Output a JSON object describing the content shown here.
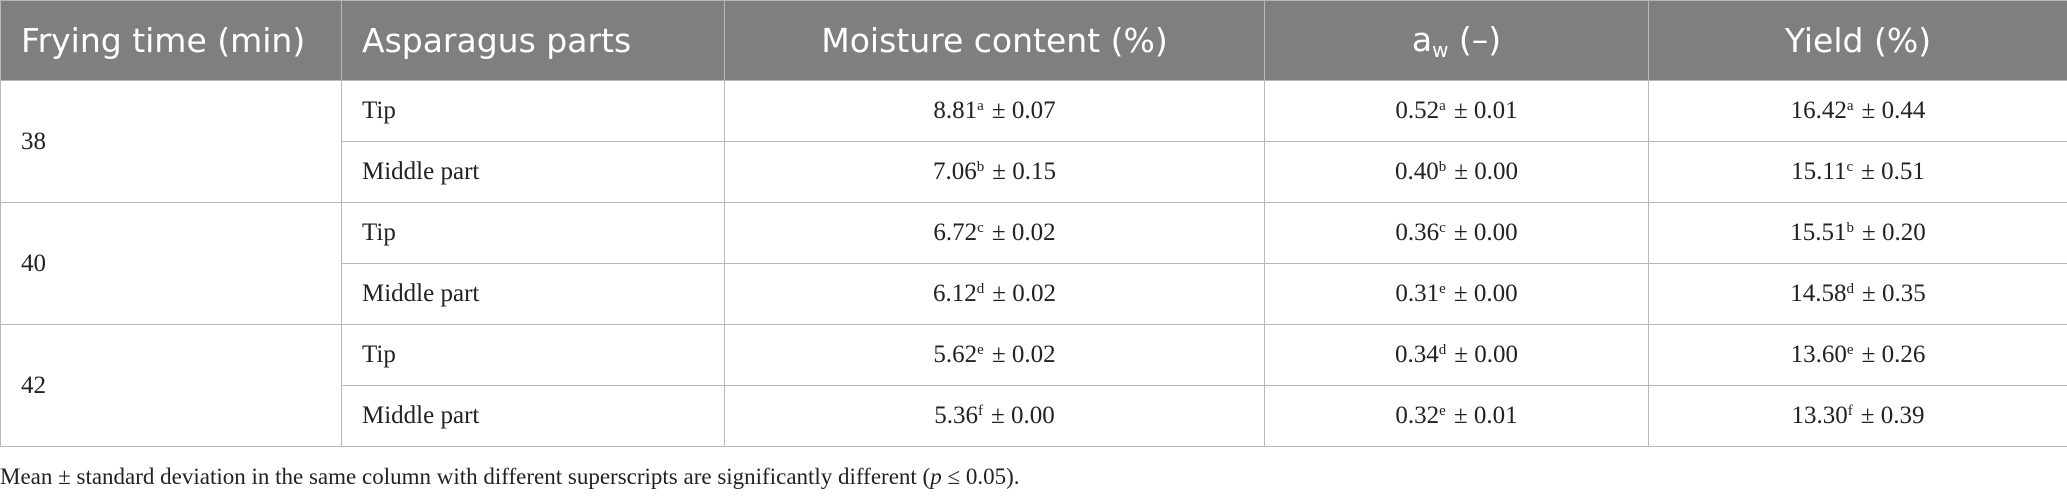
{
  "table": {
    "header": [
      "Frying time (min)",
      "Asparagus parts",
      "Moisture content (%)",
      {
        "main": "a",
        "sub": "w",
        "rest": " (–)"
      },
      "Yield (%)"
    ],
    "groups": [
      {
        "time": "38",
        "rows": [
          {
            "part": "Tip",
            "cells": [
              {
                "mean": "8.81",
                "sup": "a",
                "sd": "± 0.07"
              },
              {
                "mean": "0.52",
                "sup": "a",
                "sd": "± 0.01"
              },
              {
                "mean": "16.42",
                "sup": "a",
                "sd": "± 0.44"
              }
            ]
          },
          {
            "part": "Middle part",
            "cells": [
              {
                "mean": "7.06",
                "sup": "b",
                "sd": "± 0.15"
              },
              {
                "mean": "0.40",
                "sup": "b",
                "sd": "± 0.00"
              },
              {
                "mean": "15.11",
                "sup": "c",
                "sd": "± 0.51"
              }
            ]
          }
        ]
      },
      {
        "time": "40",
        "rows": [
          {
            "part": "Tip",
            "cells": [
              {
                "mean": "6.72",
                "sup": "c",
                "sd": "± 0.02"
              },
              {
                "mean": "0.36",
                "sup": "c",
                "sd": "± 0.00"
              },
              {
                "mean": "15.51",
                "sup": "b",
                "sd": "± 0.20"
              }
            ]
          },
          {
            "part": "Middle part",
            "cells": [
              {
                "mean": "6.12",
                "sup": "d",
                "sd": "± 0.02"
              },
              {
                "mean": "0.31",
                "sup": "e",
                "sd": "± 0.00"
              },
              {
                "mean": "14.58",
                "sup": "d",
                "sd": "± 0.35"
              }
            ]
          }
        ]
      },
      {
        "time": "42",
        "rows": [
          {
            "part": "Tip",
            "cells": [
              {
                "mean": "5.62",
                "sup": "e",
                "sd": "± 0.02"
              },
              {
                "mean": "0.34",
                "sup": "d",
                "sd": "± 0.00"
              },
              {
                "mean": "13.60",
                "sup": "e",
                "sd": "± 0.26"
              }
            ]
          },
          {
            "part": "Middle part",
            "cells": [
              {
                "mean": "5.36",
                "sup": "f",
                "sd": "± 0.00"
              },
              {
                "mean": "0.32",
                "sup": "e",
                "sd": "± 0.01"
              },
              {
                "mean": "13.30",
                "sup": "f",
                "sd": "± 0.39"
              }
            ]
          }
        ]
      }
    ]
  },
  "footnote": {
    "before": "Mean ± standard deviation in the same column with different superscripts are significantly different (",
    "italic": "p",
    "after": " ≤ 0.05)."
  }
}
